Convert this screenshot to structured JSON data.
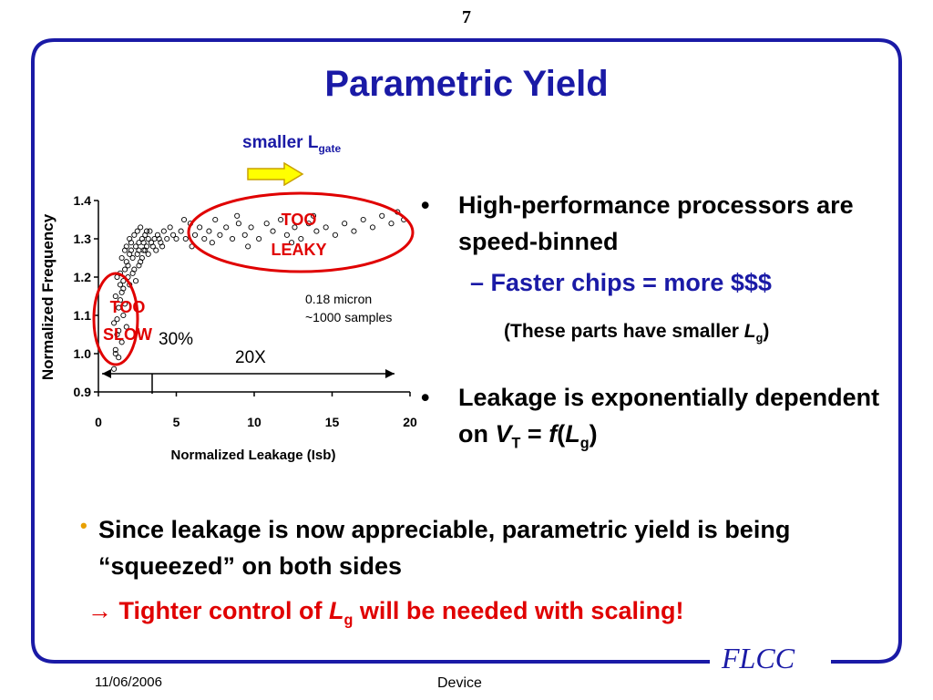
{
  "slide": {
    "page_number": "7",
    "title": "Parametric Yield",
    "arrow_label": {
      "text": "smaller L",
      "sub": "gate"
    },
    "bullets": {
      "b1": "High-performance processors are speed-binned",
      "sub1": "Faster chips = more $$$",
      "note": {
        "pre": "(These parts have smaller ",
        "var": "L",
        "sub": "g",
        "post": ")"
      },
      "b2": {
        "pre": "Leakage is exponentially dependent on ",
        "v": "V",
        "v_sub": "T",
        "eq": " = ",
        "f": "f",
        "open": "(",
        "l": "L",
        "l_sub": "g",
        "close": ")"
      },
      "marker": "•",
      "dash": "–"
    },
    "bottom_bullet": "Since leakage is now appreciable, parametric yield is being “squeezed” on both sides",
    "conclusion": {
      "arrow": "→",
      "pre": " Tighter control of ",
      "var": "L",
      "sub": "g",
      "post": " will be needed with scaling!"
    },
    "logo": "FLCC",
    "date": "11/06/2006",
    "footer": "Device",
    "colors": {
      "title_blue": "#1a1aa6",
      "annotation_red": "#e00000",
      "arrow_yellow": "#ffff00",
      "bullet_orange": "#e8a000"
    }
  },
  "chart_data": {
    "type": "scatter",
    "xlabel": "Normalized Leakage (Isb)",
    "ylabel": "Normalized Frequency",
    "xlim": [
      0,
      20
    ],
    "ylim": [
      0.9,
      1.4
    ],
    "xticks": [
      "0",
      "5",
      "10",
      "15",
      "20"
    ],
    "yticks": [
      "0.9",
      "1.0",
      "1.1",
      "1.2",
      "1.3",
      "1.4"
    ],
    "annotations": {
      "too_slow": [
        "TOO",
        "SLOW"
      ],
      "too_leaky": [
        "TOO",
        "LEAKY"
      ],
      "info": [
        "0.18 micron",
        "~1000 samples"
      ],
      "pct": "30%",
      "span": "20X"
    },
    "series": [
      {
        "points": [
          [
            1.0,
            0.96
          ],
          [
            1.1,
            1.01
          ],
          [
            1.2,
            1.05
          ],
          [
            1.0,
            1.08
          ],
          [
            1.3,
            1.12
          ],
          [
            1.1,
            1.15
          ],
          [
            1.4,
            1.18
          ],
          [
            1.2,
            1.2
          ],
          [
            1.5,
            1.03
          ],
          [
            1.3,
            0.99
          ],
          [
            1.6,
            1.1
          ],
          [
            1.4,
            1.14
          ],
          [
            1.7,
            1.22
          ],
          [
            1.5,
            1.25
          ],
          [
            1.8,
            1.07
          ],
          [
            1.6,
            1.17
          ],
          [
            1.9,
            1.23
          ],
          [
            2.0,
            1.26
          ],
          [
            1.1,
            1.0
          ],
          [
            1.2,
            1.09
          ],
          [
            1.3,
            1.06
          ],
          [
            1.4,
            1.21
          ],
          [
            1.5,
            1.16
          ],
          [
            1.6,
            1.19
          ],
          [
            1.7,
            1.13
          ],
          [
            1.8,
            1.24
          ],
          [
            1.9,
            1.2
          ],
          [
            2.0,
            1.18
          ],
          [
            2.1,
            1.27
          ],
          [
            2.2,
            1.25
          ],
          [
            2.3,
            1.22
          ],
          [
            2.4,
            1.28
          ],
          [
            2.5,
            1.26
          ],
          [
            2.6,
            1.29
          ],
          [
            2.7,
            1.24
          ],
          [
            2.8,
            1.3
          ],
          [
            2.9,
            1.27
          ],
          [
            3.0,
            1.31
          ],
          [
            3.1,
            1.28
          ],
          [
            3.2,
            1.3
          ],
          [
            2.2,
            1.21
          ],
          [
            2.4,
            1.19
          ],
          [
            2.6,
            1.23
          ],
          [
            2.8,
            1.25
          ],
          [
            3.0,
            1.27
          ],
          [
            3.2,
            1.26
          ],
          [
            3.4,
            1.29
          ],
          [
            3.6,
            1.3
          ],
          [
            3.8,
            1.31
          ],
          [
            4.0,
            1.29
          ],
          [
            4.2,
            1.32
          ],
          [
            4.4,
            1.3
          ],
          [
            4.6,
            1.33
          ],
          [
            4.8,
            1.31
          ],
          [
            5.0,
            1.3
          ],
          [
            3.3,
            1.32
          ],
          [
            3.5,
            1.28
          ],
          [
            3.7,
            1.27
          ],
          [
            3.9,
            1.3
          ],
          [
            4.1,
            1.28
          ],
          [
            1.8,
            1.28
          ],
          [
            2.0,
            1.3
          ],
          [
            2.3,
            1.31
          ],
          [
            2.5,
            1.32
          ],
          [
            2.7,
            1.33
          ],
          [
            2.9,
            1.29
          ],
          [
            3.1,
            1.32
          ],
          [
            1.7,
            1.27
          ],
          [
            2.1,
            1.29
          ],
          [
            2.6,
            1.27
          ],
          [
            5.3,
            1.32
          ],
          [
            5.6,
            1.3
          ],
          [
            5.9,
            1.34
          ],
          [
            6.2,
            1.31
          ],
          [
            6.5,
            1.33
          ],
          [
            6.8,
            1.3
          ],
          [
            7.1,
            1.32
          ],
          [
            7.5,
            1.35
          ],
          [
            7.8,
            1.31
          ],
          [
            8.2,
            1.33
          ],
          [
            8.6,
            1.3
          ],
          [
            9.0,
            1.34
          ],
          [
            9.4,
            1.31
          ],
          [
            9.8,
            1.33
          ],
          [
            10.3,
            1.3
          ],
          [
            10.8,
            1.34
          ],
          [
            11.2,
            1.32
          ],
          [
            11.7,
            1.35
          ],
          [
            12.1,
            1.31
          ],
          [
            12.6,
            1.33
          ],
          [
            13.0,
            1.3
          ],
          [
            13.5,
            1.34
          ],
          [
            14.0,
            1.32
          ],
          [
            14.6,
            1.33
          ],
          [
            15.2,
            1.31
          ],
          [
            15.8,
            1.34
          ],
          [
            16.4,
            1.32
          ],
          [
            17.0,
            1.35
          ],
          [
            17.6,
            1.33
          ],
          [
            18.2,
            1.36
          ],
          [
            18.8,
            1.34
          ],
          [
            19.2,
            1.37
          ],
          [
            19.6,
            1.35
          ],
          [
            6.0,
            1.28
          ],
          [
            7.3,
            1.29
          ],
          [
            9.6,
            1.28
          ],
          [
            12.4,
            1.29
          ],
          [
            5.5,
            1.35
          ],
          [
            8.9,
            1.36
          ],
          [
            13.8,
            1.36
          ]
        ]
      }
    ]
  }
}
